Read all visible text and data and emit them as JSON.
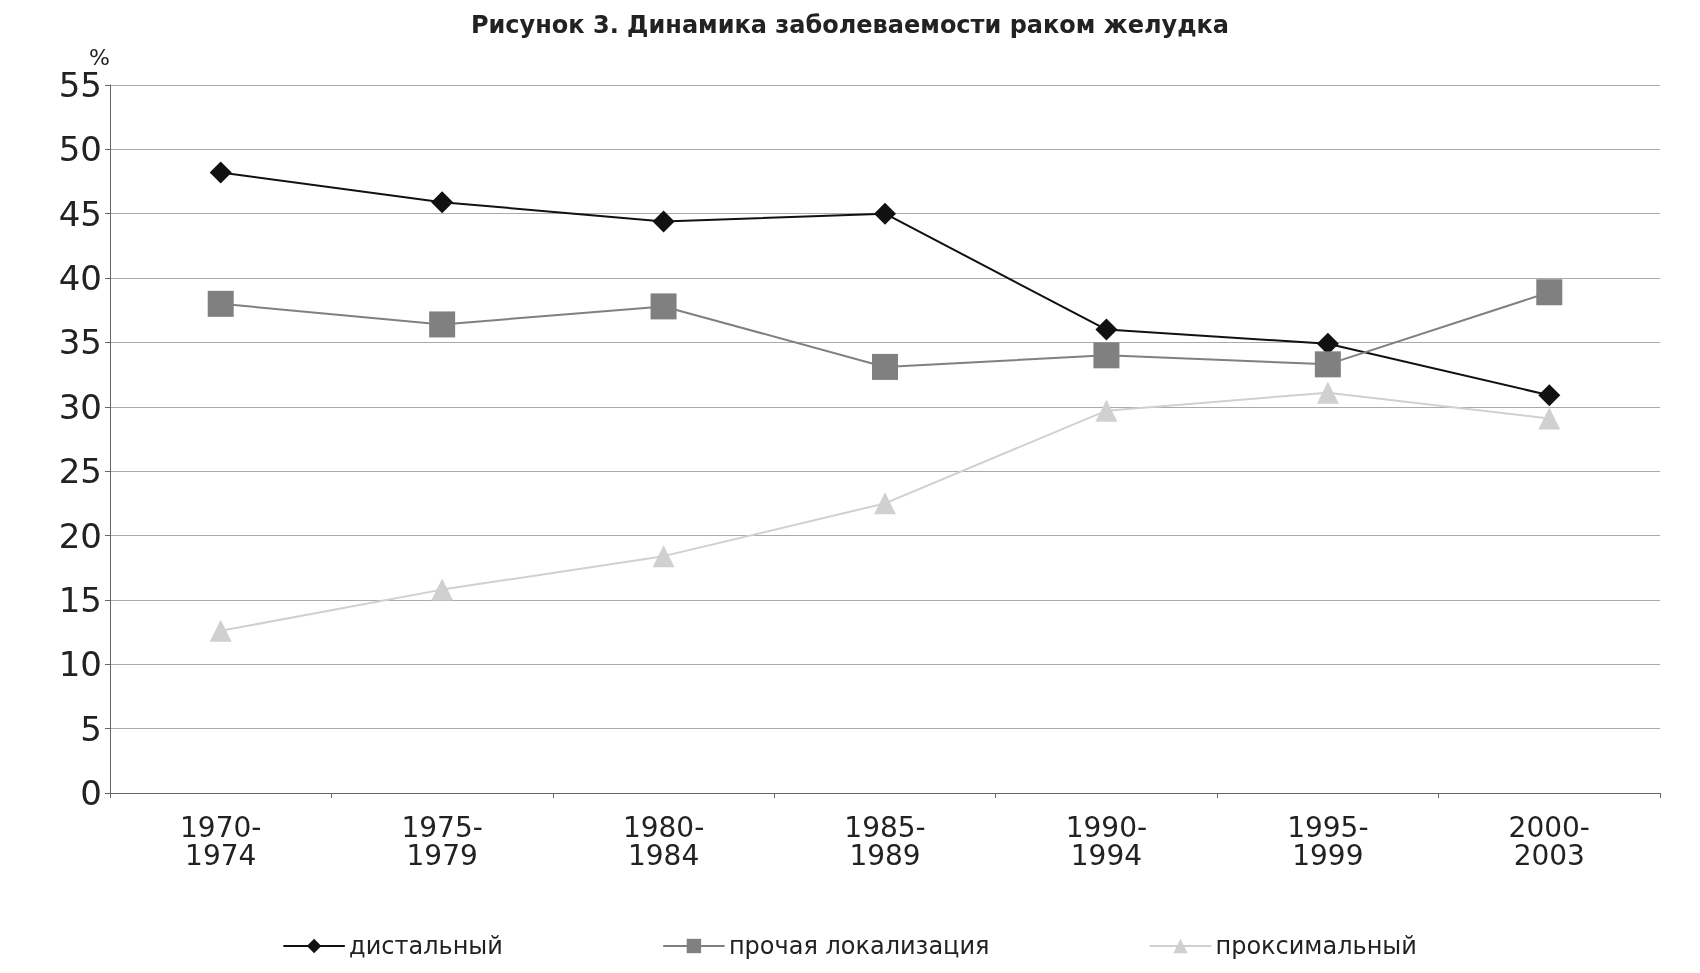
{
  "chart_data": {
    "type": "line",
    "title": "Рисунок 3. Динамика заболеваемости раком желудка",
    "ylabel": "%",
    "categories": [
      "1970-\n1974",
      "1975-\n1979",
      "1980-\n1984",
      "1985-\n1989",
      "1990-\n1994",
      "1995-\n1999",
      "2000-\n2003"
    ],
    "series": [
      {
        "name": "дистальный",
        "color": "#111111",
        "marker": "diamond",
        "values": [
          48.2,
          45.9,
          44.4,
          45.0,
          36.0,
          34.9,
          30.9
        ]
      },
      {
        "name": "прочая локализация",
        "color": "#808080",
        "marker": "square",
        "values": [
          38.0,
          36.4,
          37.8,
          33.1,
          34.0,
          33.3,
          38.9
        ]
      },
      {
        "name": "проксимальный",
        "color": "#d0d0d0",
        "marker": "triangle",
        "values": [
          12.6,
          15.8,
          18.4,
          22.5,
          29.7,
          31.1,
          29.1
        ]
      }
    ],
    "ylim": [
      0,
      55
    ],
    "yticks": [
      0,
      5,
      10,
      15,
      20,
      25,
      30,
      35,
      40,
      45,
      50,
      55
    ],
    "grid": "y",
    "legend": "bottom",
    "line_style": "solid"
  }
}
